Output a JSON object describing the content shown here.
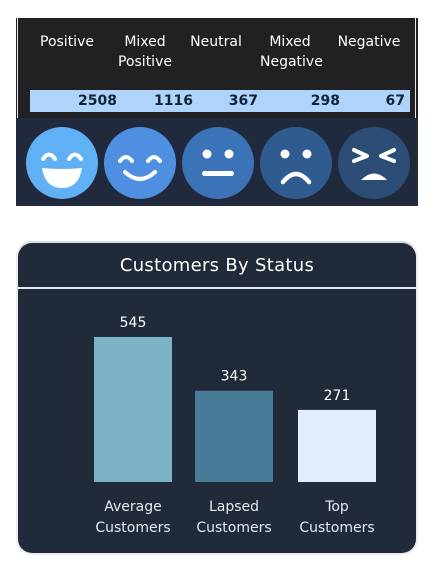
{
  "sentiment": {
    "categories": [
      {
        "label": "Positive",
        "value": "2508"
      },
      {
        "label": "Mixed Positive",
        "value": "1116"
      },
      {
        "label": "Neutral",
        "value": "367"
      },
      {
        "label": "Mixed Negative",
        "value": "298"
      },
      {
        "label": "Negative",
        "value": "67"
      }
    ],
    "faces": [
      {
        "icon": "laughing-face-icon",
        "color": "#5fb0f5"
      },
      {
        "icon": "smiling-face-icon",
        "color": "#4e8fe2"
      },
      {
        "icon": "neutral-face-icon",
        "color": "#3a73b7"
      },
      {
        "icon": "frowning-face-icon",
        "color": "#2f5b90"
      },
      {
        "icon": "angry-face-icon",
        "color": "#2c4d75"
      }
    ]
  },
  "customers_card": {
    "title": "Customers By Status"
  },
  "chart_data": {
    "type": "bar",
    "title": "Customers By Status",
    "categories": [
      "Average Customers",
      "Lapsed Customers",
      "Top Customers"
    ],
    "category_lines": [
      [
        "Average",
        "Customers"
      ],
      [
        "Lapsed",
        "Customers"
      ],
      [
        "Top",
        "Customers"
      ]
    ],
    "values": [
      545,
      343,
      271
    ],
    "colors": [
      "#7bb2c5",
      "#467c97",
      "#e2eefc"
    ],
    "ylim": [
      0,
      545
    ],
    "grid": false,
    "legend": "none"
  }
}
